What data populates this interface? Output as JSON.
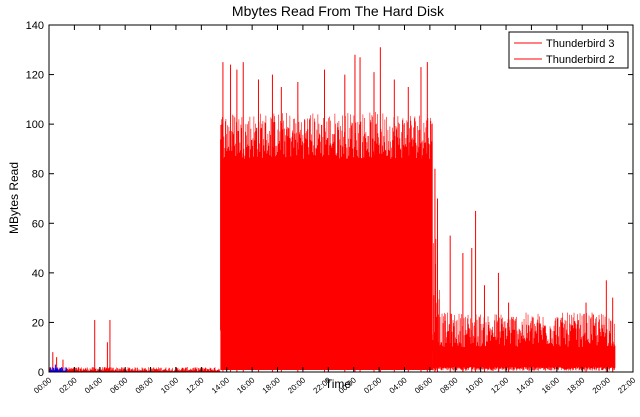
{
  "chart_data": {
    "type": "line",
    "title": "Mbytes Read From The Hard Disk",
    "xlabel": "Time",
    "ylabel": "MBytes Read",
    "ylim": [
      0,
      140
    ],
    "y_ticks": [
      "0",
      "20",
      "40",
      "60",
      "80",
      "100",
      "120",
      "140"
    ],
    "x_ticks": [
      "00:00",
      "02:00",
      "04:00",
      "06:00",
      "08:00",
      "10:00",
      "12:00",
      "14:00",
      "16:00",
      "18:00",
      "20:00",
      "22:00",
      "00:00",
      "02:00",
      "04:00",
      "06:00",
      "08:00",
      "10:00",
      "12:00",
      "14:00",
      "16:00",
      "18:00",
      "20:00",
      "22:00"
    ],
    "xlim": [
      0,
      46
    ],
    "legend_position": "top-right",
    "series": [
      {
        "name": "Thunderbird 3",
        "color": "#ff0000",
        "style": "dense-spikes",
        "segments": [
          {
            "x": [
              0,
              13.5
            ],
            "base": 0.3,
            "peak": 2,
            "spikes": [
              [
                0.3,
                8
              ],
              [
                0.6,
                6
              ],
              [
                1.1,
                5
              ],
              [
                3.6,
                21
              ],
              [
                4.8,
                21
              ],
              [
                4.6,
                12
              ]
            ]
          },
          {
            "x": [
              13.5,
              30.2
            ],
            "base": 86,
            "peak": 105,
            "spikes": [
              [
                13.7,
                125
              ],
              [
                14.3,
                124
              ],
              [
                14.8,
                122
              ],
              [
                15.3,
                125
              ],
              [
                16.5,
                118
              ],
              [
                17.6,
                120
              ],
              [
                18.3,
                115
              ],
              [
                19.6,
                117
              ],
              [
                21.7,
                122
              ],
              [
                23.3,
                120
              ],
              [
                24.1,
                128
              ],
              [
                24.5,
                127
              ],
              [
                25.6,
                121
              ],
              [
                26.1,
                131
              ],
              [
                27.2,
                118
              ],
              [
                28.3,
                115
              ],
              [
                29.3,
                123
              ],
              [
                29.8,
                125
              ]
            ]
          },
          {
            "x": [
              30.2,
              30.8
            ],
            "base": 10,
            "peak": 60,
            "spikes": [
              [
                30.4,
                82
              ],
              [
                30.6,
                70
              ]
            ]
          },
          {
            "x": [
              30.8,
              44.6
            ],
            "base": 10,
            "peak": 24,
            "spikes": [
              [
                31.6,
                55
              ],
              [
                32.6,
                48
              ],
              [
                33.3,
                50
              ],
              [
                33.6,
                65
              ],
              [
                34.3,
                35
              ],
              [
                35.4,
                40
              ],
              [
                36.2,
                28
              ],
              [
                42.3,
                28
              ],
              [
                43.9,
                37
              ],
              [
                44.4,
                30
              ]
            ]
          }
        ]
      },
      {
        "name": "Thunderbird 2",
        "color": "#0000ff",
        "style": "dense-spikes",
        "segments": [
          {
            "x": [
              0,
              1.4
            ],
            "base": 0.2,
            "peak": 2,
            "spikes": [
              [
                0.5,
                3
              ],
              [
                1.0,
                2
              ]
            ]
          }
        ]
      }
    ]
  }
}
